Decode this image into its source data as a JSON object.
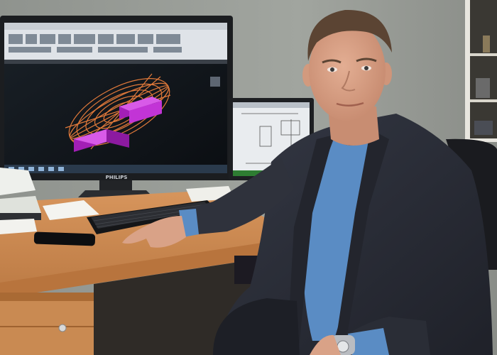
{
  "scene": {
    "monitor_brand": "PHILIPS",
    "colors": {
      "wall": "#9a9e99",
      "desk": "#c9874f",
      "desk_edge": "#b8743d",
      "screen_bg": "#101418",
      "wireframe": "#e0793a",
      "blocks": "#c234d6",
      "jacket": "#2b2e38",
      "shirt": "#5a8cc4",
      "skin": "#d9a287",
      "hair": "#5b4433"
    },
    "icons": [
      "monitor-icon",
      "keyboard-icon",
      "smartphone-icon",
      "wristwatch-icon"
    ]
  }
}
